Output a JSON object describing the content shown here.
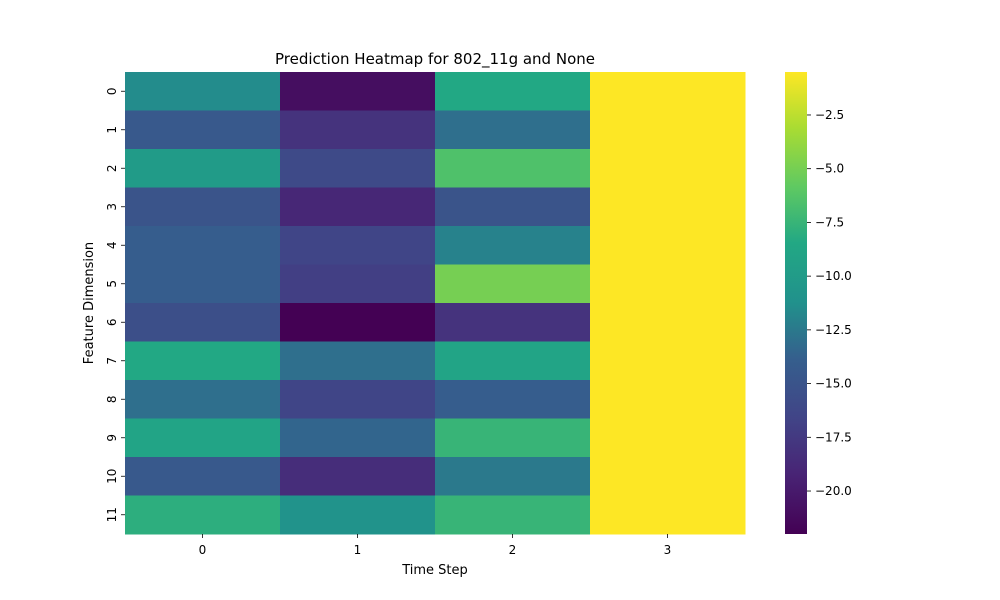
{
  "chart_data": {
    "type": "heatmap",
    "title": "Prediction Heatmap for 802_11g and None",
    "xlabel": "Time Step",
    "ylabel": "Feature Dimension",
    "x_categories": [
      "0",
      "1",
      "2",
      "3"
    ],
    "y_categories": [
      "0",
      "1",
      "2",
      "3",
      "4",
      "5",
      "6",
      "7",
      "8",
      "9",
      "10",
      "11"
    ],
    "values": [
      [
        -11.5,
        -21.0,
        -8.5,
        -0.5
      ],
      [
        -14.5,
        -18.0,
        -13.0,
        -0.5
      ],
      [
        -10.0,
        -16.0,
        -6.5,
        -0.5
      ],
      [
        -15.0,
        -19.0,
        -15.0,
        -0.5
      ],
      [
        -14.0,
        -16.5,
        -12.0,
        -0.5
      ],
      [
        -14.0,
        -17.0,
        -5.0,
        -0.5
      ],
      [
        -15.5,
        -22.0,
        -18.0,
        -0.5
      ],
      [
        -8.5,
        -13.0,
        -9.0,
        -0.5
      ],
      [
        -13.0,
        -16.5,
        -14.0,
        -0.5
      ],
      [
        -9.0,
        -13.5,
        -7.5,
        -0.5
      ],
      [
        -14.5,
        -18.5,
        -12.5,
        -0.5
      ],
      [
        -8.0,
        -11.0,
        -7.5,
        -0.5
      ]
    ],
    "colormap": "viridis",
    "vmin": -22.0,
    "vmax": -0.5,
    "colorbar": {
      "ticks": [
        -2.5,
        -5.0,
        -7.5,
        -10.0,
        -12.5,
        -15.0,
        -17.5,
        -20.0
      ],
      "tick_labels": [
        "−2.5",
        "−5.0",
        "−7.5",
        "−10.0",
        "−12.5",
        "−15.0",
        "−17.5",
        "−20.0"
      ]
    }
  }
}
